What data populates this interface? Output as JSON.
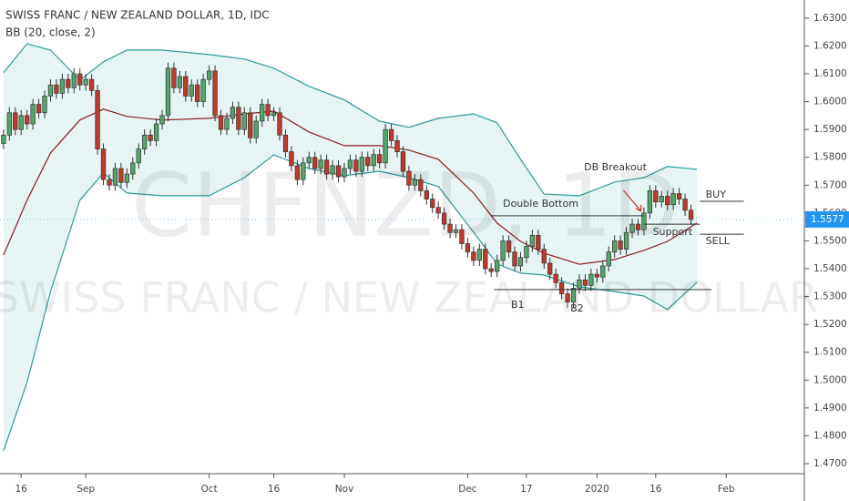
{
  "chart_data": {
    "type": "candlestick",
    "title": "SWISS FRANC / NEW ZEALAND DOLLAR, 1D, IDC",
    "indicator": "BB (20, close, 2)",
    "watermark": "CHFNZD, 1D",
    "watermark_name": "SWISS FRANC / NEW ZEALAND DOLLAR",
    "up_color": "#53a66b",
    "down_color": "#c0392b",
    "band_color": "#2c9a9a",
    "basis_color": "#8b1e1e",
    "band_fill": "#e6f4f3",
    "xlim": [
      -0.6,
      136.3
    ],
    "xticks": [
      {
        "value": 3,
        "label": "16"
      },
      {
        "value": 14,
        "label": "Sep"
      },
      {
        "value": 35,
        "label": "Oct"
      },
      {
        "value": 46,
        "label": "16"
      },
      {
        "value": 58,
        "label": "Nov"
      },
      {
        "value": 79,
        "label": "Dec"
      },
      {
        "value": 89,
        "label": "17"
      },
      {
        "value": 101,
        "label": "2020"
      },
      {
        "value": 111,
        "label": "16"
      },
      {
        "value": 123,
        "label": "Feb"
      }
    ],
    "ylim": [
      1.4664,
      1.6365
    ],
    "yticks": [
      {
        "value": 1.63,
        "label": "1.6300"
      },
      {
        "value": 1.62,
        "label": "1.6200"
      },
      {
        "value": 1.61,
        "label": "1.6100"
      },
      {
        "value": 1.6,
        "label": "1.6000"
      },
      {
        "value": 1.59,
        "label": "1.5900"
      },
      {
        "value": 1.58,
        "label": "1.5800"
      },
      {
        "value": 1.57,
        "label": "1.5700"
      },
      {
        "value": 1.56,
        "label": "1.5600"
      },
      {
        "value": 1.55,
        "label": "1.5500"
      },
      {
        "value": 1.54,
        "label": "1.5400"
      },
      {
        "value": 1.53,
        "label": "1.5300"
      },
      {
        "value": 1.52,
        "label": "1.5200"
      },
      {
        "value": 1.51,
        "label": "1.5100"
      },
      {
        "value": 1.5,
        "label": "1.5000"
      },
      {
        "value": 1.49,
        "label": "1.4900"
      },
      {
        "value": 1.48,
        "label": "1.4800"
      },
      {
        "value": 1.47,
        "label": "1.4700"
      }
    ],
    "last_price": {
      "value": 1.5577,
      "label": "1.5577"
    },
    "open": [
      1.585,
      1.588,
      1.596,
      1.59,
      1.595,
      1.592,
      1.599,
      1.596,
      1.602,
      1.606,
      1.603,
      1.608,
      1.605,
      1.61,
      1.606,
      1.608,
      1.604,
      1.583,
      1.572,
      1.57,
      1.576,
      1.571,
      1.574,
      1.578,
      1.583,
      1.588,
      1.586,
      1.592,
      1.595,
      1.612,
      1.605,
      1.609,
      1.602,
      1.606,
      1.6,
      1.608,
      1.611,
      1.595,
      1.59,
      1.594,
      1.598,
      1.59,
      1.596,
      1.587,
      1.593,
      1.599,
      1.595,
      1.596,
      1.588,
      1.582,
      1.577,
      1.572,
      1.578,
      1.58,
      1.576,
      1.579,
      1.574,
      1.577,
      1.573,
      1.576,
      1.579,
      1.575,
      1.58,
      1.577,
      1.581,
      1.578,
      1.59,
      1.586,
      1.582,
      1.575,
      1.57,
      1.572,
      1.568,
      1.565,
      1.562,
      1.56,
      1.556,
      1.553,
      1.554,
      1.549,
      1.546,
      1.543,
      1.547,
      1.54,
      1.539,
      1.543,
      1.55,
      1.546,
      1.541,
      1.544,
      1.548,
      1.552,
      1.547,
      1.542,
      1.538,
      1.535,
      1.531,
      1.528,
      1.533,
      1.536,
      1.534,
      1.538,
      1.537,
      1.541,
      1.546,
      1.55,
      1.547,
      1.553,
      1.556,
      1.554,
      1.56,
      1.568,
      1.564,
      1.566,
      1.563,
      1.567,
      1.565,
      1.561
    ],
    "high": [
      1.59,
      1.598,
      1.598,
      1.597,
      1.597,
      1.601,
      1.601,
      1.604,
      1.608,
      1.608,
      1.61,
      1.61,
      1.612,
      1.612,
      1.61,
      1.61,
      1.606,
      1.585,
      1.574,
      1.578,
      1.578,
      1.576,
      1.58,
      1.585,
      1.59,
      1.59,
      1.594,
      1.597,
      1.614,
      1.614,
      1.611,
      1.611,
      1.608,
      1.608,
      1.61,
      1.613,
      1.613,
      1.597,
      1.596,
      1.6,
      1.6,
      1.598,
      1.598,
      1.595,
      1.601,
      1.601,
      1.598,
      1.598,
      1.59,
      1.584,
      1.579,
      1.58,
      1.582,
      1.582,
      1.581,
      1.581,
      1.579,
      1.579,
      1.578,
      1.581,
      1.581,
      1.582,
      1.582,
      1.583,
      1.583,
      1.592,
      1.592,
      1.588,
      1.584,
      1.577,
      1.574,
      1.574,
      1.57,
      1.567,
      1.564,
      1.562,
      1.558,
      1.556,
      1.556,
      1.551,
      1.548,
      1.549,
      1.549,
      1.542,
      1.545,
      1.552,
      1.552,
      1.548,
      1.546,
      1.55,
      1.554,
      1.554,
      1.549,
      1.544,
      1.54,
      1.537,
      1.533,
      1.535,
      1.538,
      1.538,
      1.54,
      1.54,
      1.543,
      1.548,
      1.552,
      1.552,
      1.555,
      1.558,
      1.558,
      1.562,
      1.57,
      1.57,
      1.568,
      1.568,
      1.569,
      1.569,
      1.567,
      1.563
    ],
    "low": [
      1.583,
      1.586,
      1.588,
      1.588,
      1.59,
      1.59,
      1.594,
      1.594,
      1.6,
      1.601,
      1.601,
      1.603,
      1.603,
      1.604,
      1.604,
      1.602,
      1.581,
      1.57,
      1.568,
      1.568,
      1.569,
      1.569,
      1.572,
      1.576,
      1.581,
      1.584,
      1.584,
      1.59,
      1.593,
      1.603,
      1.603,
      1.6,
      1.6,
      1.598,
      1.598,
      1.606,
      1.593,
      1.588,
      1.588,
      1.592,
      1.588,
      1.588,
      1.585,
      1.585,
      1.591,
      1.593,
      1.593,
      1.586,
      1.58,
      1.575,
      1.57,
      1.57,
      1.576,
      1.574,
      1.574,
      1.572,
      1.572,
      1.571,
      1.571,
      1.574,
      1.573,
      1.573,
      1.575,
      1.575,
      1.576,
      1.576,
      1.584,
      1.58,
      1.573,
      1.568,
      1.568,
      1.566,
      1.563,
      1.56,
      1.558,
      1.554,
      1.551,
      1.551,
      1.547,
      1.544,
      1.541,
      1.541,
      1.538,
      1.537,
      1.537,
      1.541,
      1.544,
      1.539,
      1.539,
      1.542,
      1.546,
      1.545,
      1.54,
      1.536,
      1.533,
      1.529,
      1.526,
      1.526,
      1.531,
      1.532,
      1.532,
      1.535,
      1.535,
      1.539,
      1.544,
      1.545,
      1.545,
      1.551,
      1.552,
      1.552,
      1.558,
      1.562,
      1.562,
      1.561,
      1.561,
      1.563,
      1.559,
      1.5557
    ],
    "close": [
      1.588,
      1.596,
      1.59,
      1.595,
      1.592,
      1.599,
      1.596,
      1.602,
      1.606,
      1.603,
      1.608,
      1.605,
      1.61,
      1.606,
      1.608,
      1.604,
      1.583,
      1.572,
      1.57,
      1.576,
      1.571,
      1.574,
      1.578,
      1.583,
      1.588,
      1.586,
      1.592,
      1.595,
      1.612,
      1.605,
      1.609,
      1.602,
      1.606,
      1.6,
      1.608,
      1.611,
      1.595,
      1.59,
      1.594,
      1.598,
      1.59,
      1.596,
      1.587,
      1.593,
      1.599,
      1.595,
      1.596,
      1.588,
      1.582,
      1.577,
      1.572,
      1.578,
      1.58,
      1.576,
      1.579,
      1.574,
      1.577,
      1.573,
      1.576,
      1.579,
      1.575,
      1.58,
      1.577,
      1.581,
      1.578,
      1.59,
      1.586,
      1.582,
      1.575,
      1.57,
      1.572,
      1.568,
      1.565,
      1.562,
      1.56,
      1.556,
      1.553,
      1.554,
      1.549,
      1.546,
      1.543,
      1.547,
      1.54,
      1.539,
      1.543,
      1.55,
      1.546,
      1.541,
      1.544,
      1.548,
      1.552,
      1.547,
      1.542,
      1.538,
      1.535,
      1.531,
      1.528,
      1.533,
      1.536,
      1.534,
      1.538,
      1.537,
      1.541,
      1.546,
      1.55,
      1.547,
      1.553,
      1.556,
      1.554,
      1.56,
      1.568,
      1.564,
      1.566,
      1.563,
      1.567,
      1.565,
      1.561,
      1.5577
    ],
    "band_x": [
      0,
      4,
      8,
      13,
      17,
      21,
      27,
      35,
      41,
      46,
      52,
      58,
      64,
      69,
      74,
      80,
      84,
      88,
      92,
      98,
      104,
      109,
      113,
      118
    ],
    "band_upper": [
      1.6104,
      1.6208,
      1.6185,
      1.6077,
      1.6143,
      1.6185,
      1.6185,
      1.6169,
      1.6153,
      1.612,
      1.6055,
      1.6006,
      1.593,
      1.5908,
      1.594,
      1.5956,
      1.5924,
      1.5793,
      1.5668,
      1.5662,
      1.5711,
      1.5727,
      1.5767,
      1.5757
    ],
    "band_basis": [
      1.5449,
      1.5646,
      1.5816,
      1.5934,
      1.5973,
      1.5947,
      1.5934,
      1.594,
      1.5956,
      1.5966,
      1.5891,
      1.5842,
      1.5842,
      1.5826,
      1.5793,
      1.5672,
      1.5564,
      1.5498,
      1.5456,
      1.5416,
      1.5433,
      1.5466,
      1.5498,
      1.5564
    ],
    "band_lower": [
      1.4746,
      1.4991,
      1.5318,
      1.5646,
      1.5744,
      1.5672,
      1.5662,
      1.5662,
      1.5727,
      1.5809,
      1.576,
      1.5734,
      1.575,
      1.5727,
      1.5695,
      1.5531,
      1.5417,
      1.5384,
      1.5377,
      1.5335,
      1.5318,
      1.5302,
      1.5253,
      1.5351
    ],
    "annotations": {
      "double_bottom": {
        "label": "Double Bottom",
        "value": 1.559
      },
      "support": {
        "label": "Support",
        "value": 1.556
      },
      "buy": {
        "label": "BUY",
        "value": 1.5642
      },
      "sell": {
        "label": "SELL",
        "value": 1.5524
      },
      "bottoms": {
        "label": "B1",
        "value": 1.5325
      },
      "second_bottom": {
        "label": "B2",
        "value": 1.5325
      },
      "breakout": {
        "label": "DB Breakout",
        "value": 1.56
      }
    }
  }
}
